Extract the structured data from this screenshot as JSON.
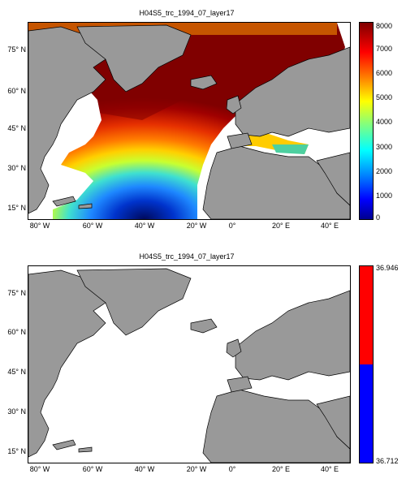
{
  "top_panel": {
    "title": "H04S5_trc_1994_07_layer17",
    "lat_ticks": [
      "75° N",
      "60° N",
      "45° N",
      "30° N",
      "15° N"
    ],
    "lon_ticks": [
      "80° W",
      "60° W",
      "40° W",
      "20° W",
      "0°",
      "20° E",
      "40° E"
    ],
    "colorbar_ticks": [
      "8000",
      "7000",
      "6000",
      "5000",
      "4000",
      "3000",
      "2000",
      "1000",
      "0"
    ],
    "colormap": "jet"
  },
  "bottom_panel": {
    "title": "H04S5_trc_1994_07_layer17",
    "lat_ticks": [
      "75° N",
      "60° N",
      "45° N",
      "30° N",
      "15° N"
    ],
    "lon_ticks": [
      "80° W",
      "60° W",
      "40° W",
      "20° W",
      "0°",
      "20° E",
      "40° E"
    ],
    "colorbar_max": "36.946",
    "colorbar_min": "36.712",
    "colorbar_colors": [
      "#ff0000",
      "#0000ff"
    ]
  },
  "colors": {
    "land": "#999999",
    "ocean_empty": "#ffffff",
    "coast": "#000000"
  }
}
